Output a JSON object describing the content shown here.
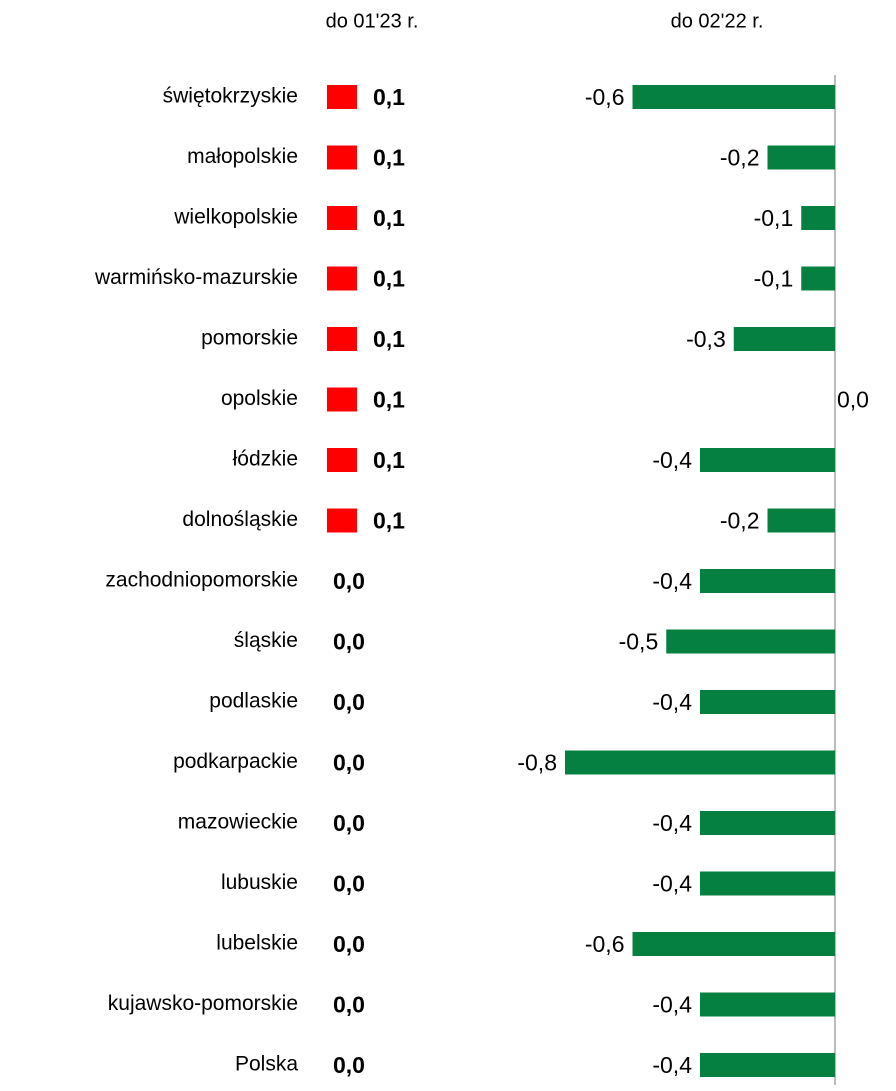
{
  "chart_data": {
    "type": "bar",
    "categories": [
      "świętokrzyskie",
      "małopolskie",
      "wielkopolskie",
      "warmińsko-mazurskie",
      "pomorskie",
      "opolskie",
      "łódzkie",
      "dolnośląskie",
      "zachodniopomorskie",
      "śląskie",
      "podlaskie",
      "podkarpackie",
      "mazowieckie",
      "lubuskie",
      "lubelskie",
      "kujawsko-pomorskie",
      "Polska"
    ],
    "series": [
      {
        "name": "do 01'23 r.",
        "color": "#ff0000",
        "values": [
          0.1,
          0.1,
          0.1,
          0.1,
          0.1,
          0.1,
          0.1,
          0.1,
          0.0,
          0.0,
          0.0,
          0.0,
          0.0,
          0.0,
          0.0,
          0.0,
          0.0
        ],
        "value_labels": [
          "0,1",
          "0,1",
          "0,1",
          "0,1",
          "0,1",
          "0,1",
          "0,1",
          "0,1",
          "0,0",
          "0,0",
          "0,0",
          "0,0",
          "0,0",
          "0,0",
          "0,0",
          "0,0",
          "0,0"
        ]
      },
      {
        "name": "do 02'22 r.",
        "color": "#068040",
        "values": [
          -0.6,
          -0.2,
          -0.1,
          -0.1,
          -0.3,
          0.0,
          -0.4,
          -0.2,
          -0.4,
          -0.5,
          -0.4,
          -0.8,
          -0.4,
          -0.4,
          -0.6,
          -0.4,
          -0.4
        ],
        "value_labels": [
          "-0,6",
          "-0,2",
          "-0,1",
          "-0,1",
          "-0,3",
          "0,0",
          "-0,4",
          "-0,2",
          "-0,4",
          "-0,5",
          "-0,4",
          "-0,8",
          "-0,4",
          "-0,4",
          "-0,6",
          "-0,4",
          "-0,4"
        ]
      }
    ]
  }
}
